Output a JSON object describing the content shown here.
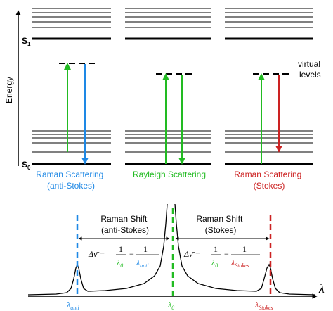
{
  "energy_diagram": {
    "axis_label": "Energy",
    "upper_state_label": "S",
    "upper_state_sub": "1",
    "ground_state_label": "S",
    "ground_state_sub": "0",
    "virtual_label_line1": "virtual",
    "virtual_label_line2": "levels",
    "panels": [
      {
        "title_line1": "Raman Scattering",
        "title_line2": "(anti-Stokes)",
        "color": "#1e88e5",
        "up_color": "#22bb22",
        "down_color": "#1e88e5"
      },
      {
        "title_line1": "Rayleigh Scattering",
        "title_line2": "",
        "color": "#22bb22",
        "up_color": "#22bb22",
        "down_color": "#22bb22"
      },
      {
        "title_line1": "Raman Scattering",
        "title_line2": "(Stokes)",
        "color": "#cc2222",
        "up_color": "#22bb22",
        "down_color": "#cc2222"
      }
    ]
  },
  "spectrum": {
    "axis_label": "λ",
    "left_shift_label_line1": "Raman Shift",
    "left_shift_label_line2": "(anti-Stokes)",
    "right_shift_label_line1": "Raman Shift",
    "right_shift_label_line2": "(Stokes)",
    "formula_lhs": "Δν̄ =",
    "one": "1",
    "minus": "−",
    "lambda0": "λ",
    "lambda0_sub": "0",
    "left_formula_second_sub": "anti",
    "right_formula_second_sub": "Stokes",
    "tick_anti": "λ",
    "tick_anti_sub": "anti",
    "tick_zero": "λ",
    "tick_zero_sub": "0",
    "tick_stokes": "λ",
    "tick_stokes_sub": "Stokes"
  },
  "colors": {
    "anti_stokes": "#1e88e5",
    "rayleigh": "#22bb22",
    "stokes": "#cc2222",
    "line": "#000000"
  }
}
